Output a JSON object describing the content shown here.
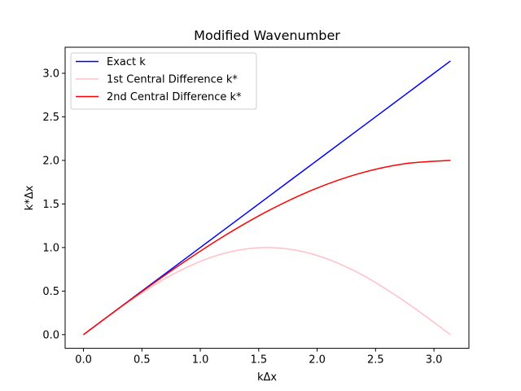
{
  "chart_data": {
    "type": "line",
    "title": "Modified Wavenumber",
    "xlabel": "kΔx",
    "ylabel": "k*Δx",
    "xlim": [
      -0.157,
      3.299
    ],
    "ylim": [
      -0.157,
      3.299
    ],
    "xticks": [
      {
        "value": 0.0,
        "label": "0.0"
      },
      {
        "value": 0.5,
        "label": "0.5"
      },
      {
        "value": 1.0,
        "label": "1.0"
      },
      {
        "value": 1.5,
        "label": "1.5"
      },
      {
        "value": 2.0,
        "label": "2.0"
      },
      {
        "value": 2.5,
        "label": "2.5"
      },
      {
        "value": 3.0,
        "label": "3.0"
      }
    ],
    "yticks": [
      {
        "value": 0.0,
        "label": "0.0"
      },
      {
        "value": 0.5,
        "label": "0.5"
      },
      {
        "value": 1.0,
        "label": "1.0"
      },
      {
        "value": 1.5,
        "label": "1.5"
      },
      {
        "value": 2.0,
        "label": "2.0"
      },
      {
        "value": 2.5,
        "label": "2.5"
      },
      {
        "value": 3.0,
        "label": "3.0"
      }
    ],
    "grid": false,
    "legend_position": "top-left",
    "series": [
      {
        "name": "Exact k",
        "color": "#0000ff",
        "x": [
          0.0,
          0.3927,
          0.7854,
          1.1781,
          1.5708,
          1.9635,
          2.3562,
          2.7489,
          3.1416
        ],
        "y": [
          0.0,
          0.3927,
          0.7854,
          1.1781,
          1.5708,
          1.9635,
          2.3562,
          2.7489,
          3.1416
        ]
      },
      {
        "name": "1st Central Difference k*",
        "color": "#ffc0cb",
        "x": [
          0.0,
          0.3927,
          0.7854,
          1.1781,
          1.5708,
          1.9635,
          2.3562,
          2.7489,
          3.1416
        ],
        "y": [
          0.0,
          0.3827,
          0.7071,
          0.9239,
          1.0,
          0.9239,
          0.7071,
          0.3827,
          0.0
        ]
      },
      {
        "name": "2nd Central Difference k*",
        "color": "#ff0000",
        "x": [
          0.0,
          0.3927,
          0.7854,
          1.1781,
          1.5708,
          1.9635,
          2.3562,
          2.7489,
          3.1416
        ],
        "y": [
          0.0,
          0.3902,
          0.7654,
          1.1111,
          1.4142,
          1.6629,
          1.8478,
          1.9616,
          2.0
        ]
      }
    ]
  }
}
